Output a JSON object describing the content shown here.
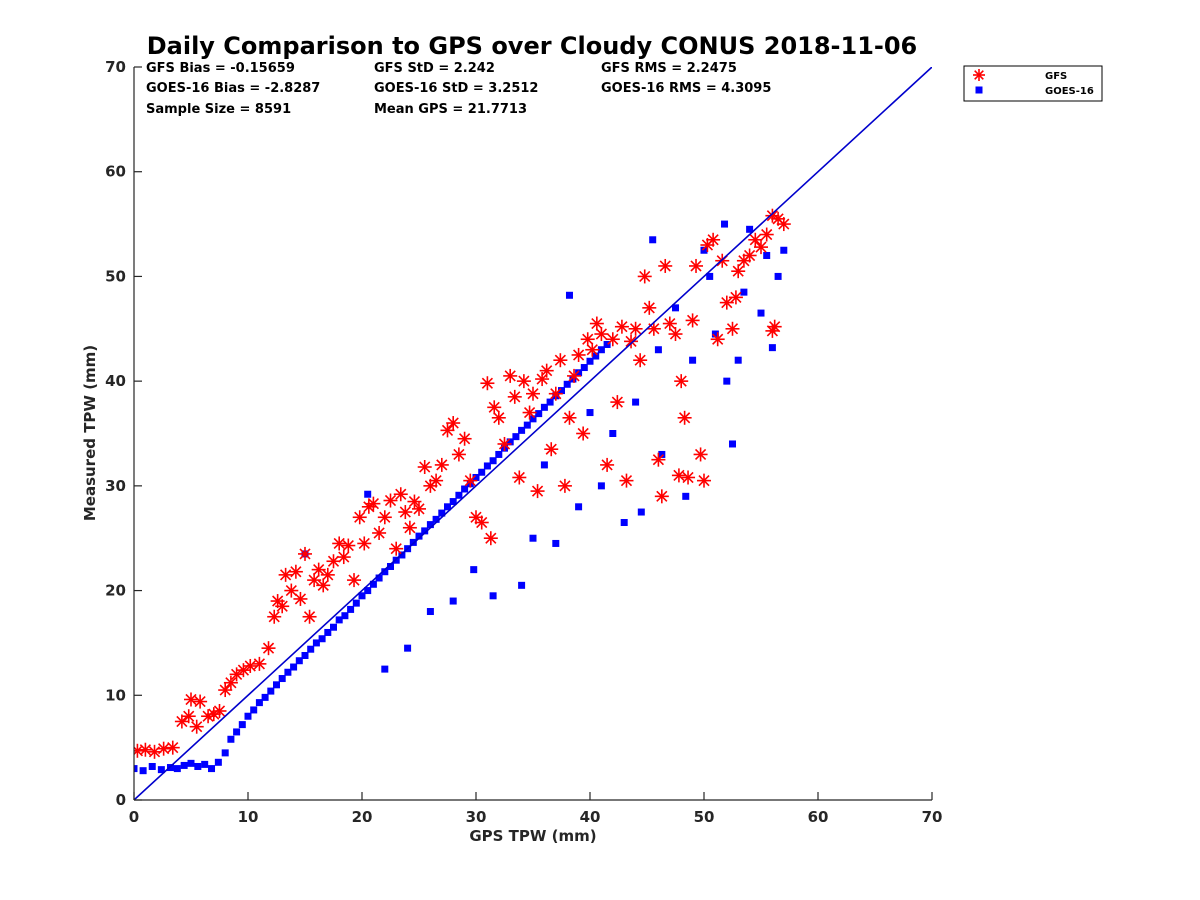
{
  "chart_data": {
    "type": "scatter",
    "title": "Daily Comparison to GPS over Cloudy CONUS 2018-11-06",
    "xlabel": "GPS TPW (mm)",
    "ylabel": "Measured TPW (mm)",
    "xlim": [
      0,
      70
    ],
    "ylim": [
      0,
      70
    ],
    "xticks": [
      "0",
      "10",
      "20",
      "30",
      "40",
      "50",
      "60",
      "70"
    ],
    "yticks": [
      "0",
      "10",
      "20",
      "30",
      "40",
      "50",
      "60",
      "70"
    ],
    "grid": false,
    "legend_position": "top-right (outside)",
    "reference_line": {
      "x": [
        0,
        70
      ],
      "y": [
        0,
        70
      ],
      "color": "#0000cc"
    },
    "stats": [
      "GFS Bias = -0.15659",
      "GFS StD = 2.242",
      "GFS RMS = 2.2475",
      "GOES-16 Bias = -2.8287",
      "GOES-16 StD = 3.2512",
      "GOES-16 RMS = 4.3095",
      "Sample Size = 8591",
      "Mean GPS = 21.7713"
    ],
    "series": [
      {
        "name": "GFS",
        "marker": "asterisk",
        "color": "#ff0000",
        "points": [
          [
            0.3,
            4.7
          ],
          [
            1.0,
            4.8
          ],
          [
            1.8,
            4.6
          ],
          [
            2.6,
            4.9
          ],
          [
            3.4,
            5.0
          ],
          [
            4.2,
            7.5
          ],
          [
            4.8,
            8.0
          ],
          [
            5.0,
            9.6
          ],
          [
            5.5,
            7.0
          ],
          [
            5.8,
            9.4
          ],
          [
            6.5,
            8.0
          ],
          [
            7.0,
            8.2
          ],
          [
            7.5,
            8.5
          ],
          [
            8.0,
            10.5
          ],
          [
            8.5,
            11.2
          ],
          [
            9.0,
            12.0
          ],
          [
            9.6,
            12.4
          ],
          [
            10.2,
            12.8
          ],
          [
            11.0,
            13.0
          ],
          [
            11.8,
            14.5
          ],
          [
            12.3,
            17.5
          ],
          [
            12.6,
            19.0
          ],
          [
            13.0,
            18.5
          ],
          [
            13.3,
            21.5
          ],
          [
            13.8,
            20.0
          ],
          [
            14.2,
            21.8
          ],
          [
            14.6,
            19.2
          ],
          [
            15.0,
            23.5
          ],
          [
            15.4,
            17.5
          ],
          [
            15.8,
            21.0
          ],
          [
            16.2,
            22.0
          ],
          [
            16.6,
            20.5
          ],
          [
            17.0,
            21.5
          ],
          [
            17.5,
            22.8
          ],
          [
            18.0,
            24.5
          ],
          [
            18.4,
            23.2
          ],
          [
            18.8,
            24.3
          ],
          [
            19.3,
            21.0
          ],
          [
            19.8,
            27.0
          ],
          [
            20.2,
            24.5
          ],
          [
            20.6,
            28.0
          ],
          [
            21.0,
            28.3
          ],
          [
            21.5,
            25.5
          ],
          [
            22.0,
            27.0
          ],
          [
            22.5,
            28.6
          ],
          [
            23.0,
            24.0
          ],
          [
            23.4,
            29.2
          ],
          [
            23.8,
            27.5
          ],
          [
            24.2,
            26.0
          ],
          [
            24.6,
            28.5
          ],
          [
            25.0,
            27.8
          ],
          [
            25.5,
            31.8
          ],
          [
            26.0,
            30.0
          ],
          [
            26.5,
            30.5
          ],
          [
            27.0,
            32.0
          ],
          [
            27.5,
            35.3
          ],
          [
            28.0,
            36.0
          ],
          [
            28.5,
            33.0
          ],
          [
            29.0,
            34.5
          ],
          [
            29.5,
            30.5
          ],
          [
            30.0,
            27.0
          ],
          [
            30.5,
            26.5
          ],
          [
            31.0,
            39.8
          ],
          [
            31.3,
            25.0
          ],
          [
            31.6,
            37.5
          ],
          [
            32.0,
            36.5
          ],
          [
            32.5,
            34.0
          ],
          [
            33.0,
            40.5
          ],
          [
            33.4,
            38.5
          ],
          [
            33.8,
            30.8
          ],
          [
            34.2,
            40.0
          ],
          [
            34.7,
            37.0
          ],
          [
            35.0,
            38.8
          ],
          [
            35.4,
            29.5
          ],
          [
            35.8,
            40.2
          ],
          [
            36.2,
            41.0
          ],
          [
            36.6,
            33.5
          ],
          [
            37.0,
            38.8
          ],
          [
            37.4,
            42.0
          ],
          [
            37.8,
            30.0
          ],
          [
            38.2,
            36.5
          ],
          [
            38.6,
            40.5
          ],
          [
            39.0,
            42.5
          ],
          [
            39.4,
            35.0
          ],
          [
            39.8,
            44.0
          ],
          [
            40.2,
            43.0
          ],
          [
            40.6,
            45.5
          ],
          [
            41.0,
            44.5
          ],
          [
            41.5,
            32.0
          ],
          [
            42.0,
            44.0
          ],
          [
            42.4,
            38.0
          ],
          [
            42.8,
            45.2
          ],
          [
            43.2,
            30.5
          ],
          [
            43.6,
            43.8
          ],
          [
            44.0,
            45.0
          ],
          [
            44.4,
            42.0
          ],
          [
            44.8,
            50.0
          ],
          [
            45.2,
            47.0
          ],
          [
            45.6,
            45.0
          ],
          [
            46.0,
            32.5
          ],
          [
            46.3,
            29.0
          ],
          [
            46.6,
            51.0
          ],
          [
            47.0,
            45.5
          ],
          [
            47.5,
            44.5
          ],
          [
            47.8,
            31.0
          ],
          [
            48.0,
            40.0
          ],
          [
            48.3,
            36.5
          ],
          [
            48.6,
            30.8
          ],
          [
            49.0,
            45.8
          ],
          [
            49.3,
            51.0
          ],
          [
            49.7,
            33.0
          ],
          [
            50.0,
            30.5
          ],
          [
            50.3,
            53.0
          ],
          [
            50.8,
            53.5
          ],
          [
            51.2,
            44.0
          ],
          [
            51.6,
            51.5
          ],
          [
            52.0,
            47.5
          ],
          [
            52.5,
            45.0
          ],
          [
            53.0,
            50.5
          ],
          [
            53.5,
            51.5
          ],
          [
            54.0,
            52.0
          ],
          [
            54.5,
            53.5
          ],
          [
            55.0,
            52.8
          ],
          [
            55.5,
            54.0
          ],
          [
            56.0,
            55.8
          ],
          [
            56.2,
            45.2
          ],
          [
            56.5,
            55.5
          ],
          [
            57.0,
            55.0
          ],
          [
            56.0,
            44.8
          ],
          [
            52.8,
            48.0
          ]
        ]
      },
      {
        "name": "GOES-16",
        "marker": "square",
        "color": "#0000ff",
        "points": [
          [
            0.0,
            3.0
          ],
          [
            0.8,
            2.8
          ],
          [
            1.6,
            3.2
          ],
          [
            2.4,
            2.9
          ],
          [
            3.2,
            3.1
          ],
          [
            3.8,
            3.0
          ],
          [
            4.4,
            3.3
          ],
          [
            5.0,
            3.5
          ],
          [
            5.6,
            3.2
          ],
          [
            6.2,
            3.4
          ],
          [
            6.8,
            3.0
          ],
          [
            7.4,
            3.6
          ],
          [
            8.0,
            4.5
          ],
          [
            8.5,
            5.8
          ],
          [
            9.0,
            6.5
          ],
          [
            9.5,
            7.2
          ],
          [
            10.0,
            8.0
          ],
          [
            10.5,
            8.6
          ],
          [
            11.0,
            9.3
          ],
          [
            11.5,
            9.8
          ],
          [
            12.0,
            10.4
          ],
          [
            12.5,
            11.0
          ],
          [
            13.0,
            11.6
          ],
          [
            13.5,
            12.2
          ],
          [
            14.0,
            12.7
          ],
          [
            14.5,
            13.3
          ],
          [
            15.0,
            13.8
          ],
          [
            15.5,
            14.4
          ],
          [
            16.0,
            15.0
          ],
          [
            16.5,
            15.4
          ],
          [
            17.0,
            16.0
          ],
          [
            17.5,
            16.5
          ],
          [
            18.0,
            17.2
          ],
          [
            18.5,
            17.6
          ],
          [
            19.0,
            18.2
          ],
          [
            19.5,
            18.8
          ],
          [
            20.0,
            19.5
          ],
          [
            20.5,
            20.0
          ],
          [
            21.0,
            20.6
          ],
          [
            21.5,
            21.2
          ],
          [
            22.0,
            21.8
          ],
          [
            22.5,
            22.3
          ],
          [
            23.0,
            22.9
          ],
          [
            23.5,
            23.4
          ],
          [
            24.0,
            24.0
          ],
          [
            24.5,
            24.6
          ],
          [
            25.0,
            25.2
          ],
          [
            25.5,
            25.7
          ],
          [
            26.0,
            26.3
          ],
          [
            26.5,
            26.8
          ],
          [
            27.0,
            27.4
          ],
          [
            27.5,
            28.0
          ],
          [
            28.0,
            28.5
          ],
          [
            28.5,
            29.1
          ],
          [
            29.0,
            29.7
          ],
          [
            29.5,
            30.2
          ],
          [
            30.0,
            30.8
          ],
          [
            30.5,
            31.3
          ],
          [
            31.0,
            31.9
          ],
          [
            31.5,
            32.4
          ],
          [
            32.0,
            33.0
          ],
          [
            32.5,
            33.6
          ],
          [
            33.0,
            34.2
          ],
          [
            33.5,
            34.7
          ],
          [
            34.0,
            35.3
          ],
          [
            34.5,
            35.8
          ],
          [
            35.0,
            36.4
          ],
          [
            35.5,
            36.9
          ],
          [
            36.0,
            37.5
          ],
          [
            36.5,
            38.0
          ],
          [
            37.0,
            38.6
          ],
          [
            37.5,
            39.1
          ],
          [
            38.0,
            39.7
          ],
          [
            38.5,
            40.2
          ],
          [
            39.0,
            40.8
          ],
          [
            39.5,
            41.3
          ],
          [
            40.0,
            41.9
          ],
          [
            40.5,
            42.4
          ],
          [
            41.0,
            43.0
          ],
          [
            41.5,
            43.5
          ],
          [
            15.0,
            23.5
          ],
          [
            20.5,
            29.2
          ],
          [
            22.0,
            12.5
          ],
          [
            24.0,
            14.5
          ],
          [
            26.0,
            18.0
          ],
          [
            28.0,
            19.0
          ],
          [
            29.8,
            22.0
          ],
          [
            31.5,
            19.5
          ],
          [
            34.0,
            20.5
          ],
          [
            35.0,
            25.0
          ],
          [
            37.0,
            24.5
          ],
          [
            38.2,
            48.2
          ],
          [
            39.0,
            28.0
          ],
          [
            41.0,
            30.0
          ],
          [
            43.0,
            26.5
          ],
          [
            44.5,
            27.5
          ],
          [
            45.5,
            53.5
          ],
          [
            46.3,
            33.0
          ],
          [
            47.5,
            47.0
          ],
          [
            48.4,
            29.0
          ],
          [
            49.0,
            42.0
          ],
          [
            50.0,
            52.5
          ],
          [
            51.0,
            44.5
          ],
          [
            52.0,
            40.0
          ],
          [
            52.5,
            34.0
          ],
          [
            53.0,
            42.0
          ],
          [
            53.5,
            48.5
          ],
          [
            54.0,
            54.5
          ],
          [
            55.0,
            46.5
          ],
          [
            55.5,
            52.0
          ],
          [
            56.0,
            43.2
          ],
          [
            56.5,
            50.0
          ],
          [
            57.0,
            52.5
          ],
          [
            51.8,
            55.0
          ],
          [
            50.5,
            50.0
          ],
          [
            46.0,
            43.0
          ],
          [
            44.0,
            38.0
          ],
          [
            42.0,
            35.0
          ],
          [
            40.0,
            37.0
          ],
          [
            36.0,
            32.0
          ]
        ]
      }
    ]
  }
}
